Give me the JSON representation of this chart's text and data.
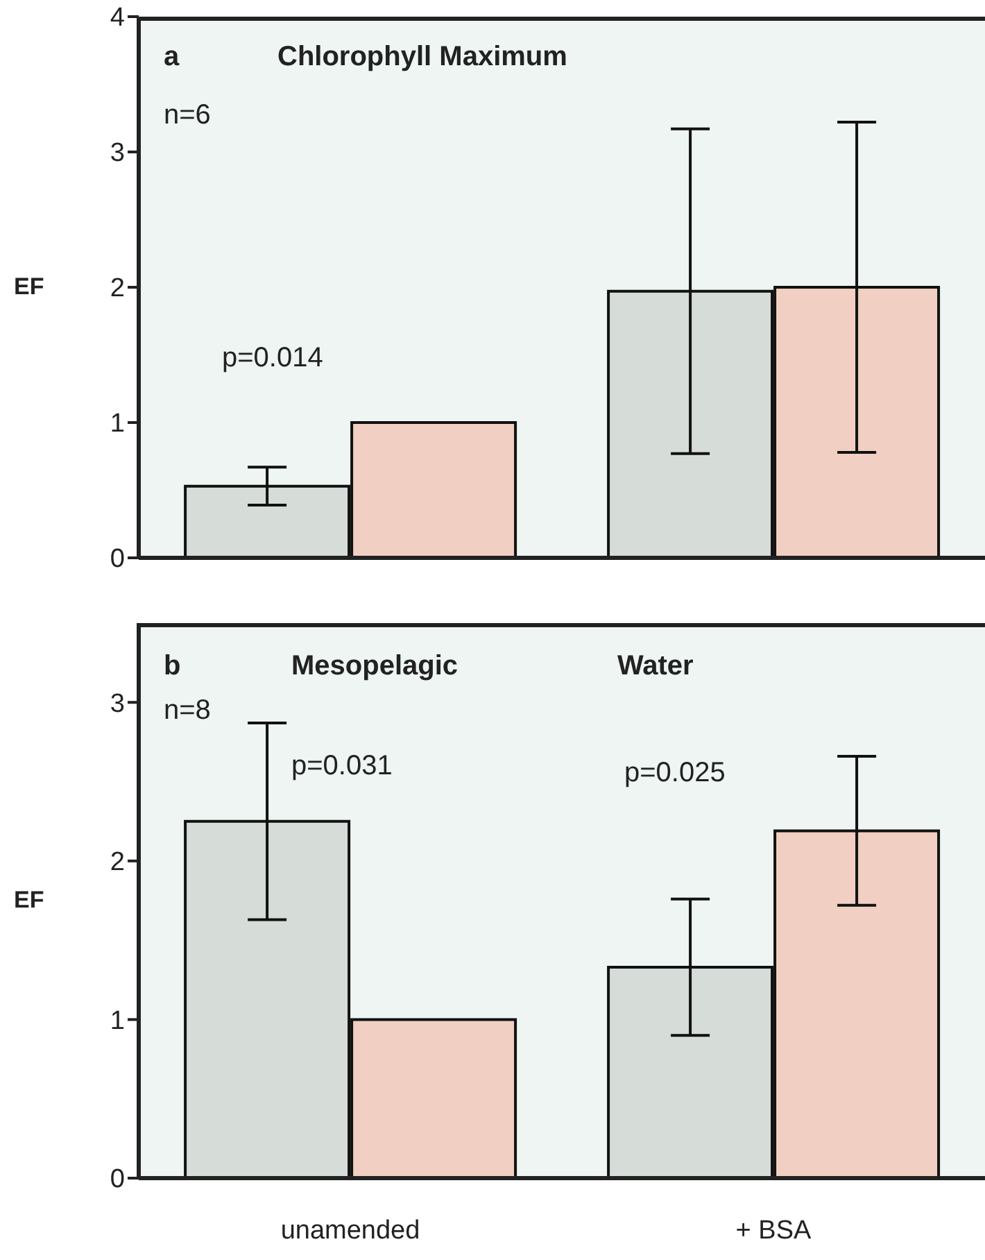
{
  "chart_data": [
    {
      "type": "bar",
      "title": "Chlorophyll Maximum",
      "ylabel": "EF",
      "categories": [
        null,
        null
      ],
      "series": [
        {
          "color": "#d6ddd8",
          "values": [
            0.53,
            1.97
          ],
          "errors": [
            0.14,
            1.2
          ]
        },
        {
          "color": "#f1cfc2",
          "values": [
            1.0,
            2.0
          ],
          "errors": [
            null,
            1.22
          ]
        }
      ],
      "ylim": [
        0,
        4
      ],
      "yticks": [
        0,
        1,
        2,
        3,
        4
      ],
      "tick_labels": "y",
      "annotations": [
        "a",
        "n=6",
        "p=0.014"
      ]
    },
    {
      "type": "bar",
      "ylabel": "EF",
      "categories": [
        "unamended",
        "+ BSA"
      ],
      "series": [
        {
          "color": "#d6ddd8",
          "values": [
            2.25,
            1.33
          ],
          "errors": [
            0.62,
            0.43
          ]
        },
        {
          "color": "#f1cfc2",
          "values": [
            1.0,
            2.19
          ],
          "errors": [
            null,
            0.47
          ]
        }
      ],
      "ylim": [
        0,
        3.5
      ],
      "yticks": [
        0,
        1,
        2,
        3
      ],
      "annotations": [
        "b",
        "Mesopelagic",
        "Water",
        "n=8",
        "p=0.031",
        "p=0.025"
      ]
    }
  ]
}
